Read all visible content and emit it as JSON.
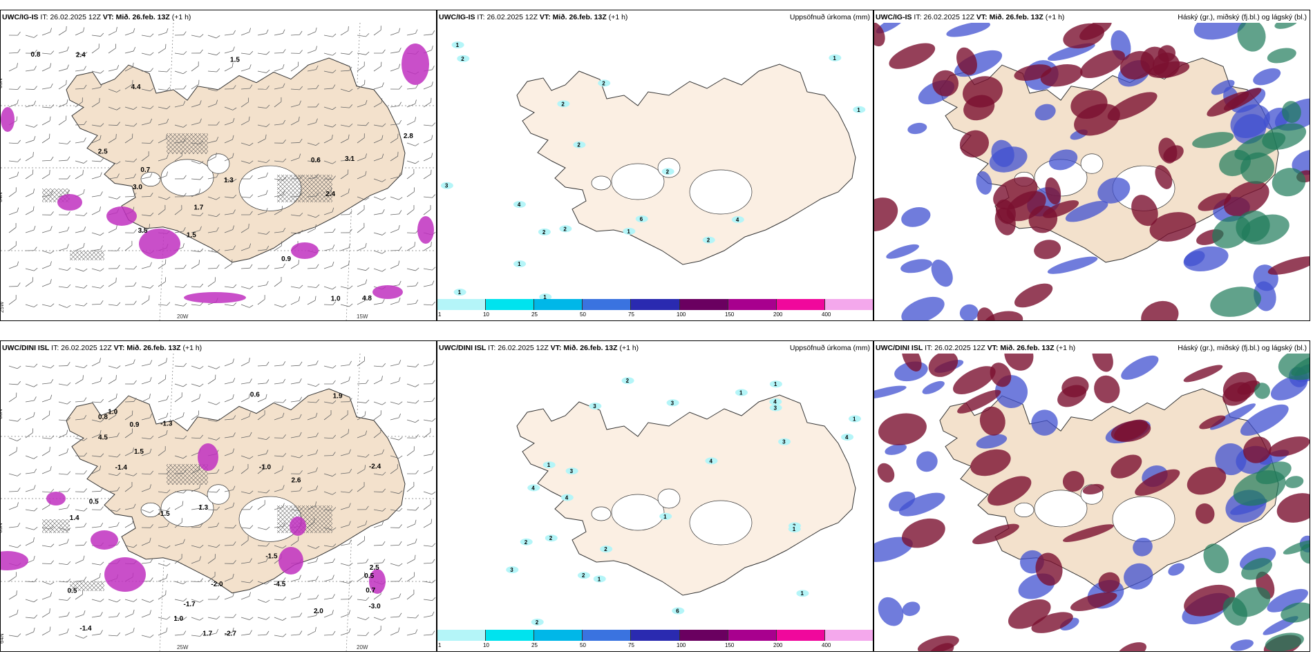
{
  "top_row": {
    "wind": {
      "model": "UWC/IG-IS",
      "it_label": "IT:",
      "it_value": "26.02.2025 12Z",
      "vt_label": "VT:",
      "vt_value": "Mið. 26.feb. 13Z",
      "lead": "(+1 h)",
      "axis_labels": [
        "65N",
        "64N",
        "25W",
        "20W",
        "15W"
      ],
      "values": [
        "1.7",
        "2.5",
        "2.4",
        "2.4",
        "4.8",
        "4.4",
        "1.5",
        "3.0",
        "3.5",
        "0.6",
        "3.1",
        "1.5",
        "0.8",
        "1.0",
        "0.7",
        "0.9",
        "1.3",
        "2.8"
      ]
    },
    "precip": {
      "model": "UWC/IG-IS",
      "it_label": "IT:",
      "it_value": "26.02.2025 12Z",
      "vt_label": "VT:",
      "vt_value": "Mið. 26.feb. 13Z",
      "lead": "(+1 h)",
      "field": "Uppsöfnuð úrkoma (mm)",
      "values": [
        "2",
        "1",
        "3",
        "1",
        "1",
        "2",
        "2",
        "2",
        "1",
        "4",
        "2",
        "2",
        "1",
        "4",
        "6",
        "2",
        "1",
        "1",
        "2"
      ]
    },
    "cloud": {
      "model": "UWC/IG-IS",
      "it_label": "IT:",
      "it_value": "26.02.2025 12Z",
      "vt_label": "VT:",
      "vt_value": "Mið. 26.feb. 13Z",
      "lead": "(+1 h)",
      "field": "Háský (gr.), miðský (fj.bl.) og lágský (bl.)"
    }
  },
  "bottom_row": {
    "wind": {
      "model": "UWC/DINI ISL",
      "it_label": "IT:",
      "it_value": "26.02.2025 12Z",
      "vt_label": "VT:",
      "vt_value": "Mið. 26.feb. 13Z",
      "lead": "(+1 h)",
      "axis_labels": [
        "66N",
        "65N",
        "64N",
        "25W",
        "20W"
      ],
      "values": [
        "-4.5",
        "0.5",
        "-2.4",
        "-1.7",
        "-3.0",
        "4.5",
        "1.5",
        "1.9",
        "-2.7",
        "-1.0",
        "-1.4",
        "-1.4",
        "2.6",
        "0.6",
        "1.3",
        "0.5",
        "1.4",
        "2.0",
        "-2.0",
        "1.0",
        "-1.5",
        "0.7",
        "0.8",
        "-1.5",
        "-1.3",
        "1.0",
        "2.5",
        "0.9",
        "0.5",
        "1.7"
      ]
    },
    "precip": {
      "model": "UWC/DINI ISL",
      "it_label": "IT:",
      "it_value": "26.02.2025 12Z",
      "vt_label": "VT:",
      "vt_value": "Mið. 26.feb. 13Z",
      "lead": "(+1 h)",
      "field": "Uppsöfnuð úrkoma (mm)",
      "values": [
        "6",
        "1",
        "3",
        "3",
        "2",
        "2",
        "3",
        "2",
        "4",
        "4",
        "3",
        "3",
        "1",
        "2",
        "1",
        "1",
        "1",
        "3",
        "4",
        "4",
        "2",
        "3",
        "1",
        "2",
        "1",
        "4",
        "1"
      ]
    },
    "cloud": {
      "model": "UWC/DINI ISL",
      "it_label": "IT:",
      "it_value": "26.02.2025 12Z",
      "vt_label": "VT:",
      "vt_value": "Mið. 26.feb. 13Z",
      "lead": "(+1 h)",
      "field": "Háský (gr.), miðský (fj.bl.) og lágský (bl.)"
    }
  },
  "colorbar": {
    "ticks": [
      "1",
      "10",
      "25",
      "50",
      "75",
      "100",
      "150",
      "200",
      "400"
    ],
    "colors": [
      "#b4f5f8",
      "#00e3ee",
      "#00b7e8",
      "#3a73e0",
      "#2a2ab0",
      "#6a0060",
      "#a8008e",
      "#f0089c",
      "#f4a8ec"
    ]
  },
  "colors": {
    "land": "#f3e1cc",
    "land_precip": "#fbefe3",
    "coast": "#333333",
    "cloud_high": "#1e7a5a",
    "cloud_mid": "#7a1030",
    "cloud_low": "#4050d0",
    "precip_magenta": "#c030c0",
    "precip_light": "#a8e8a0"
  }
}
